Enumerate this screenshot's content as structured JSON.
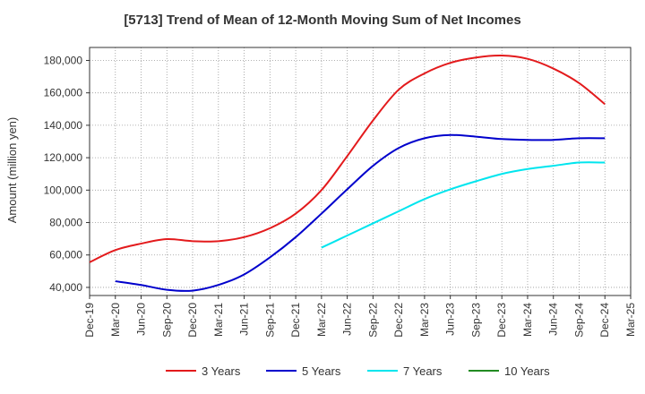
{
  "chart_data": {
    "type": "line",
    "title": "[5713]  Trend of Mean of 12-Month Moving Sum of Net Incomes",
    "xlabel": "",
    "ylabel": "Amount (million yen)",
    "ylim": [
      35000,
      188000
    ],
    "yticks": [
      40000,
      60000,
      80000,
      100000,
      120000,
      140000,
      160000,
      180000
    ],
    "ytick_labels": [
      "40,000",
      "60,000",
      "80,000",
      "100,000",
      "120,000",
      "140,000",
      "160,000",
      "180,000"
    ],
    "x_tick_labels": [
      "Dec-19",
      "Mar-20",
      "Jun-20",
      "Sep-20",
      "Dec-20",
      "Mar-21",
      "Jun-21",
      "Sep-21",
      "Dec-21",
      "Mar-22",
      "Jun-22",
      "Sep-22",
      "Dec-22",
      "Mar-23",
      "Jun-23",
      "Sep-23",
      "Dec-23",
      "Mar-24",
      "Jun-24",
      "Sep-24",
      "Dec-24",
      "Mar-25"
    ],
    "grid": true,
    "legend_position": "bottom",
    "series": [
      {
        "name": "3 Years",
        "color": "#e31a1c",
        "x": [
          "Dec-19",
          "Mar-20",
          "Jun-20",
          "Sep-20",
          "Dec-20",
          "Mar-21",
          "Jun-21",
          "Sep-21",
          "Dec-21",
          "Mar-22",
          "Jun-22",
          "Sep-22",
          "Dec-22",
          "Mar-23",
          "Jun-23",
          "Sep-23",
          "Dec-23",
          "Mar-24",
          "Jun-24",
          "Sep-24",
          "Dec-24"
        ],
        "values": [
          55500,
          63000,
          67000,
          69800,
          68500,
          68500,
          71000,
          76500,
          85500,
          100000,
          121000,
          143000,
          162000,
          172000,
          178500,
          181800,
          183000,
          181000,
          175000,
          166000,
          153000
        ]
      },
      {
        "name": "5 Years",
        "color": "#0000cc",
        "x": [
          "Mar-20",
          "Jun-20",
          "Sep-20",
          "Dec-20",
          "Mar-21",
          "Jun-21",
          "Sep-21",
          "Dec-21",
          "Mar-22",
          "Jun-22",
          "Sep-22",
          "Dec-22",
          "Mar-23",
          "Jun-23",
          "Sep-23",
          "Dec-23",
          "Mar-24",
          "Jun-24",
          "Sep-24",
          "Dec-24"
        ],
        "values": [
          43800,
          41500,
          38500,
          38000,
          41500,
          48000,
          58500,
          71000,
          85500,
          100500,
          115000,
          126000,
          132000,
          134000,
          133000,
          131500,
          131000,
          131000,
          132000,
          132000
        ]
      },
      {
        "name": "7 Years",
        "color": "#00e5ee",
        "x": [
          "Mar-22",
          "Jun-22",
          "Sep-22",
          "Dec-22",
          "Mar-23",
          "Jun-23",
          "Sep-23",
          "Dec-23",
          "Mar-24",
          "Jun-24",
          "Sep-24",
          "Dec-24"
        ],
        "values": [
          64500,
          72000,
          79500,
          87000,
          94500,
          100500,
          105500,
          110000,
          113000,
          115000,
          117000,
          117000
        ]
      },
      {
        "name": "10 Years",
        "color": "#228b22",
        "x": [],
        "values": []
      }
    ]
  }
}
